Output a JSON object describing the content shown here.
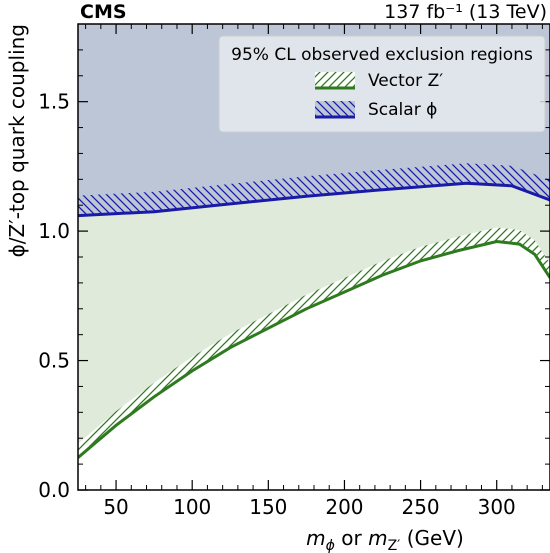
{
  "chart_data": {
    "type": "area",
    "experiment_label": "CMS",
    "luminosity_label": "137 fb⁻¹ (13 TeV)",
    "xlabel_parts": [
      "m",
      "ϕ",
      " or ",
      "m",
      "Z′",
      " (GeV)"
    ],
    "ylabel": "ϕ/Z′-top quark coupling",
    "xlim": [
      25,
      335
    ],
    "ylim": [
      0.0,
      1.8
    ],
    "xticks": [
      50,
      100,
      150,
      200,
      250,
      300
    ],
    "yticks": [
      0.0,
      0.5,
      1.0,
      1.5
    ],
    "ytick_labels": [
      "0.0",
      "0.5",
      "1.0",
      "1.5"
    ],
    "legend_title": "95% CL observed exclusion regions",
    "legend_placement": "top-right",
    "series": [
      {
        "name": "Scalar ϕ",
        "color": "#1a1aa8",
        "fill": "#bcc6d7",
        "hatch": "\\\\",
        "x": [
          25,
          75,
          125,
          175,
          225,
          280,
          310,
          335
        ],
        "y": [
          1.06,
          1.075,
          1.105,
          1.135,
          1.16,
          1.185,
          1.175,
          1.12
        ]
      },
      {
        "name": "Vector Z′",
        "color": "#2e7a1e",
        "fill": "#dfeadb",
        "hatch": "///",
        "x": [
          25,
          50,
          75,
          100,
          125,
          150,
          175,
          200,
          225,
          250,
          275,
          300,
          315,
          325,
          335
        ],
        "y": [
          0.125,
          0.25,
          0.36,
          0.46,
          0.55,
          0.625,
          0.7,
          0.765,
          0.83,
          0.885,
          0.925,
          0.96,
          0.95,
          0.91,
          0.82
        ]
      }
    ]
  }
}
